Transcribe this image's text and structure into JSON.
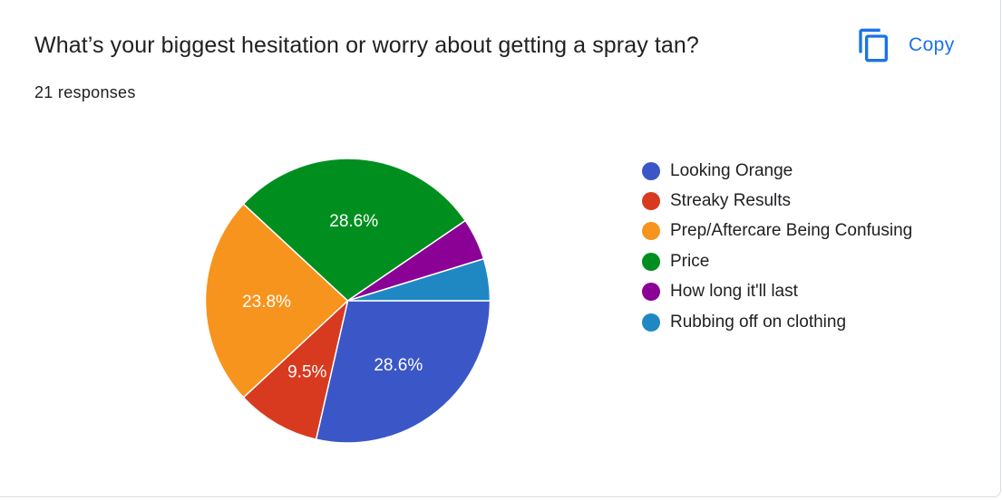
{
  "question": {
    "title": "What’s your biggest hesitation or worry about getting a spray tan?",
    "responses": "21 responses"
  },
  "toolbar": {
    "copy_label": "Copy",
    "copy_icon": "copy-icon"
  },
  "chart_data": {
    "type": "pie",
    "categories": [
      "Looking Orange",
      "Streaky Results",
      "Prep/Aftercare Being Confusing",
      "Price",
      "How long it'll last",
      "Rubbing off on clothing"
    ],
    "values": [
      6,
      2,
      5,
      6,
      1,
      1
    ],
    "percent_labels": [
      "28.6%",
      "9.5%",
      "23.8%",
      "28.6%",
      "",
      ""
    ],
    "colors": [
      "#3b57c7",
      "#d83a1f",
      "#f7941d",
      "#008f1f",
      "#8b0095",
      "#1f88c2"
    ],
    "legend_placement": "right"
  }
}
